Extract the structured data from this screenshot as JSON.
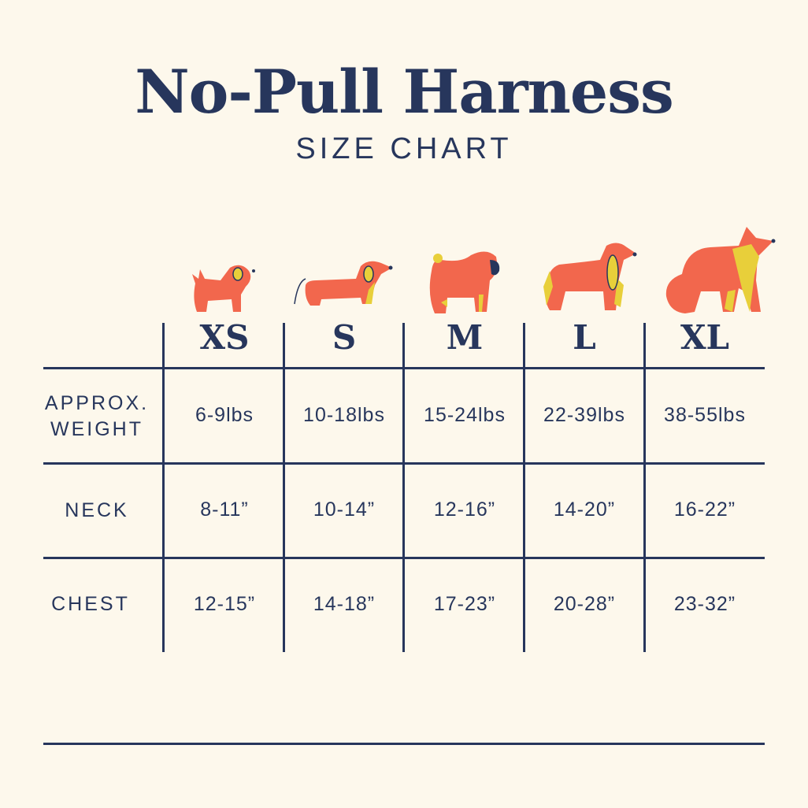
{
  "title": "No-Pull Harness",
  "subtitle": "SIZE CHART",
  "colors": {
    "background": "#fdf8ec",
    "navy": "#27365c",
    "dog_orange": "#f2674d",
    "dog_yellow": "#e8cf3a"
  },
  "sizes": [
    "XS",
    "S",
    "M",
    "L",
    "XL"
  ],
  "dog_icons": [
    "small-fluffy-dog-icon",
    "dachshund-icon",
    "pug-icon",
    "spaniel-icon",
    "collie-icon"
  ],
  "rows": [
    {
      "label_line1": "APPROX.",
      "label_line2": "WEIGHT",
      "values": [
        "6-9lbs",
        "10-18lbs",
        "15-24lbs",
        "22-39lbs",
        "38-55lbs"
      ]
    },
    {
      "label_line1": "NECK",
      "values": [
        "8-11”",
        "10-14”",
        "12-16”",
        "14-20”",
        "16-22”"
      ]
    },
    {
      "label_line1": "CHEST",
      "values": [
        "12-15”",
        "14-18”",
        "17-23”",
        "20-28”",
        "23-32”"
      ]
    }
  ]
}
